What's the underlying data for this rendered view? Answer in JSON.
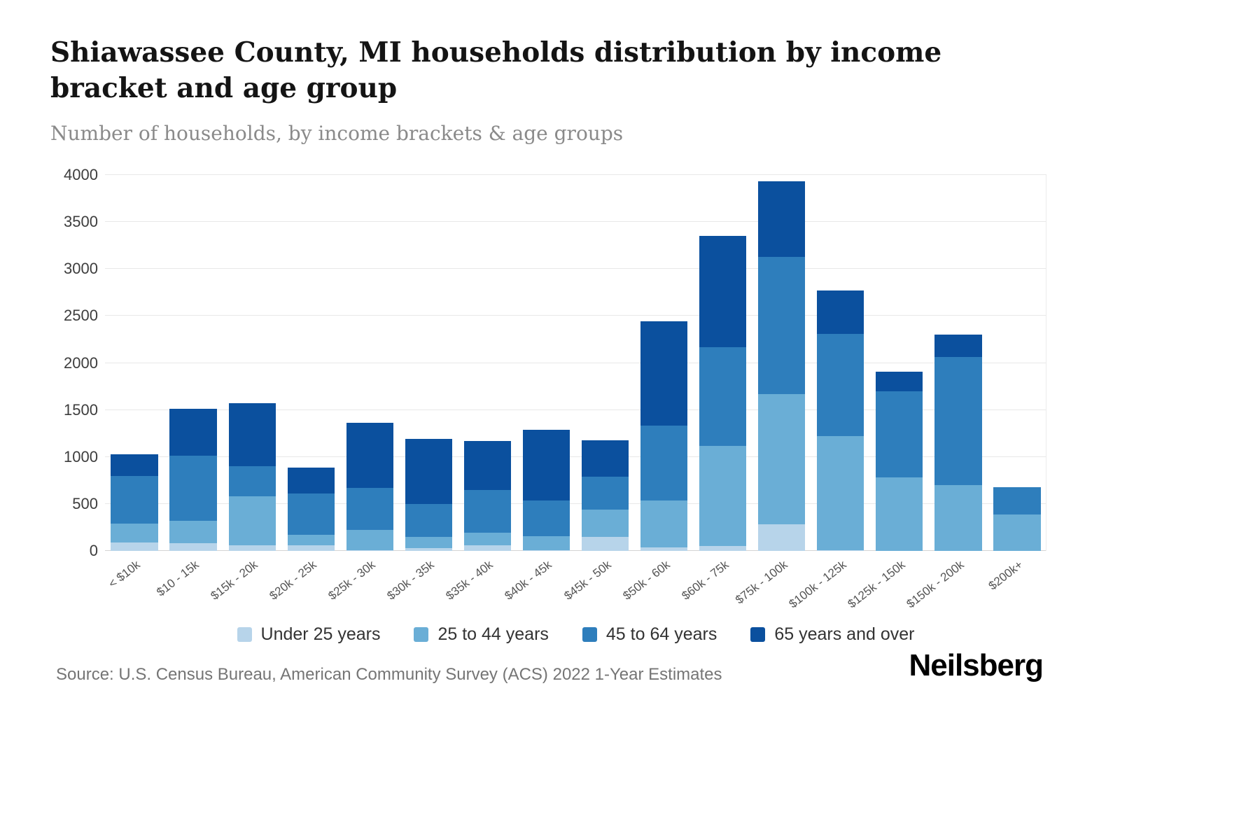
{
  "header": {
    "title": "Shiawassee County, MI households distribution by income bracket and age group",
    "subtitle": "Number of households, by income brackets & age groups"
  },
  "footer": {
    "source": "Source: U.S. Census Bureau, American Community Survey (ACS) 2022 1-Year Estimates",
    "brand": "Neilsberg"
  },
  "chart_data": {
    "type": "bar",
    "stacked": true,
    "title": "Shiawassee County, MI households distribution by income bracket and age group",
    "subtitle": "Number of households, by income brackets & age groups",
    "xlabel": "",
    "ylabel": "Number of households",
    "ylim": [
      0,
      4000
    ],
    "yticks": [
      0,
      500,
      1000,
      1500,
      2000,
      2500,
      3000,
      3500,
      4000
    ],
    "grid": true,
    "legend_position": "bottom",
    "categories": [
      "< $10k",
      "$10 - 15k",
      "$15k - 20k",
      "$20k - 25k",
      "$25k - 30k",
      "$30k - 35k",
      "$35k - 40k",
      "$40k - 45k",
      "$45k - 50k",
      "$50k - 60k",
      "$60k - 75k",
      "$75k - 100k",
      "$100k - 125k",
      "$125k - 150k",
      "$150k - 200k",
      "$200k+"
    ],
    "series": [
      {
        "name": "Under 25 years",
        "color": "#b7d4ea",
        "values": [
          90,
          80,
          60,
          60,
          10,
          30,
          60,
          10,
          150,
          40,
          50,
          280,
          10,
          0,
          0,
          0
        ]
      },
      {
        "name": "25 to 44 years",
        "color": "#6aaed6",
        "values": [
          200,
          240,
          520,
          115,
          210,
          120,
          135,
          145,
          290,
          500,
          1070,
          1390,
          1210,
          780,
          700,
          390
        ]
      },
      {
        "name": "45 to 64 years",
        "color": "#2e7ebc",
        "values": [
          510,
          690,
          320,
          435,
          450,
          350,
          455,
          385,
          350,
          790,
          1050,
          1460,
          1090,
          920,
          1360,
          290
        ]
      },
      {
        "name": "65 years and over",
        "color": "#0b509e",
        "values": [
          230,
          500,
          670,
          280,
          690,
          690,
          520,
          750,
          390,
          1110,
          1180,
          800,
          460,
          210,
          240,
          0
        ]
      }
    ]
  }
}
